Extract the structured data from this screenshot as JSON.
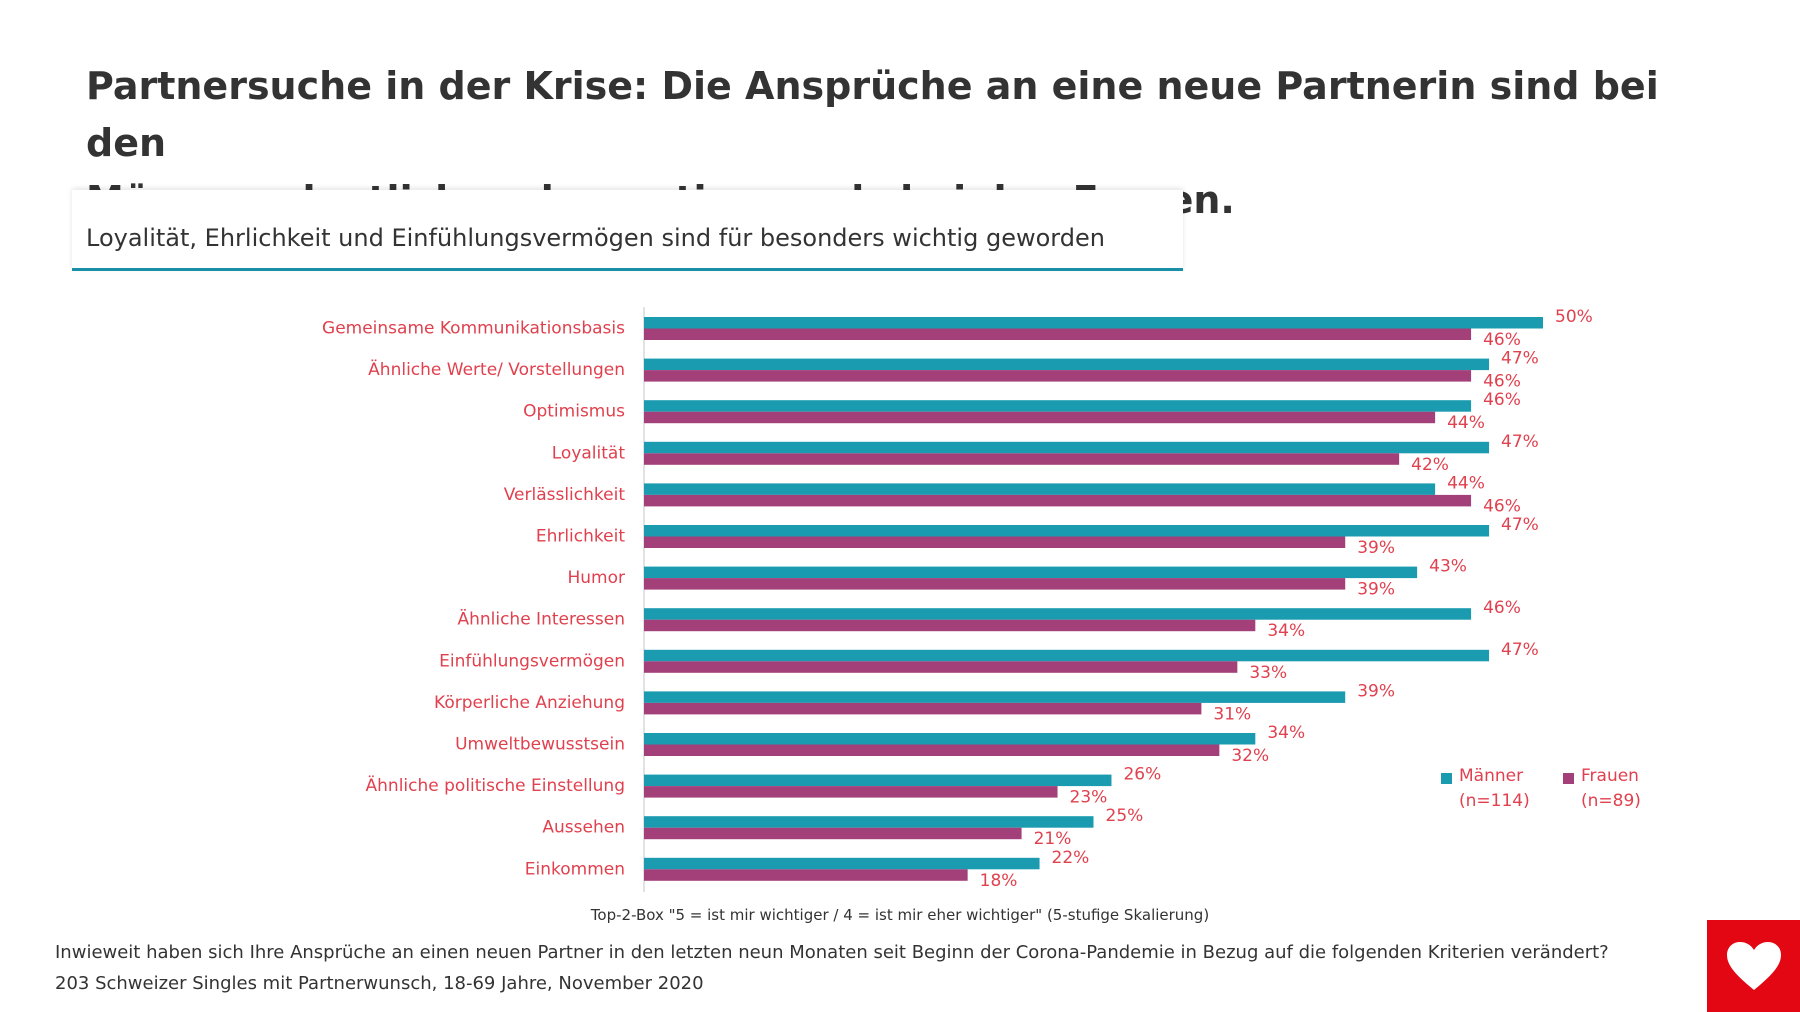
{
  "title_line1": "Partnersuche in der Krise: Die Ansprüche an eine neue Partnerin sind bei den",
  "title_line2": "Männern deutlich mehr gestiegen als bei den Frauen.",
  "subtitle": "Loyalität, Ehrlichkeit und Einfühlungsvermögen sind für besonders wichtig geworden",
  "note": "Top-2-Box \"5 = ist mir wichtiger / 4 = ist mir eher wichtiger\" (5-stufige Skalierung)",
  "footer_line1": "Inwieweit haben sich Ihre Ansprüche an einen neuen Partner in den letzten neun Monaten seit Beginn der Corona-Pandemie in Bezug auf die folgenden Kriterien verändert?",
  "footer_line2": "203 Schweizer Singles mit Partnerwunsch, 18-69 Jahre, November 2020",
  "legend": {
    "maenner_line1": "Männer",
    "maenner_line2": "(n=114)",
    "frauen_line1": "Frauen",
    "frauen_line2": "(n=89)"
  },
  "colors": {
    "maenner": "#1a9bb0",
    "frauen": "#a3407a",
    "label_text": "#e0414e",
    "brand": "#e30613"
  },
  "brand_icon": "heart-icon",
  "chart_data": {
    "type": "bar",
    "orientation": "horizontal",
    "unit": "%",
    "categories": [
      "Gemeinsame Kommunikationsbasis",
      "Ähnliche Werte/ Vorstellungen",
      "Optimismus",
      "Loyalität",
      "Verlässlichkeit",
      "Ehrlichkeit",
      "Humor",
      "Ähnliche Interessen",
      "Einfühlungsvermögen",
      "Körperliche Anziehung",
      "Umweltbewusstsein",
      "Ähnliche politische Einstellung",
      "Aussehen",
      "Einkommen"
    ],
    "series": [
      {
        "name": "Männer (n=114)",
        "color": "#1a9bb0",
        "values": [
          50,
          47,
          46,
          47,
          44,
          47,
          43,
          46,
          47,
          39,
          34,
          26,
          25,
          22
        ]
      },
      {
        "name": "Frauen (n=89)",
        "color": "#a3407a",
        "values": [
          46,
          46,
          44,
          42,
          46,
          39,
          39,
          34,
          33,
          31,
          32,
          23,
          21,
          18
        ]
      }
    ],
    "xlim": [
      0,
      50
    ],
    "legend_position": "bottom-right",
    "grid": false
  }
}
